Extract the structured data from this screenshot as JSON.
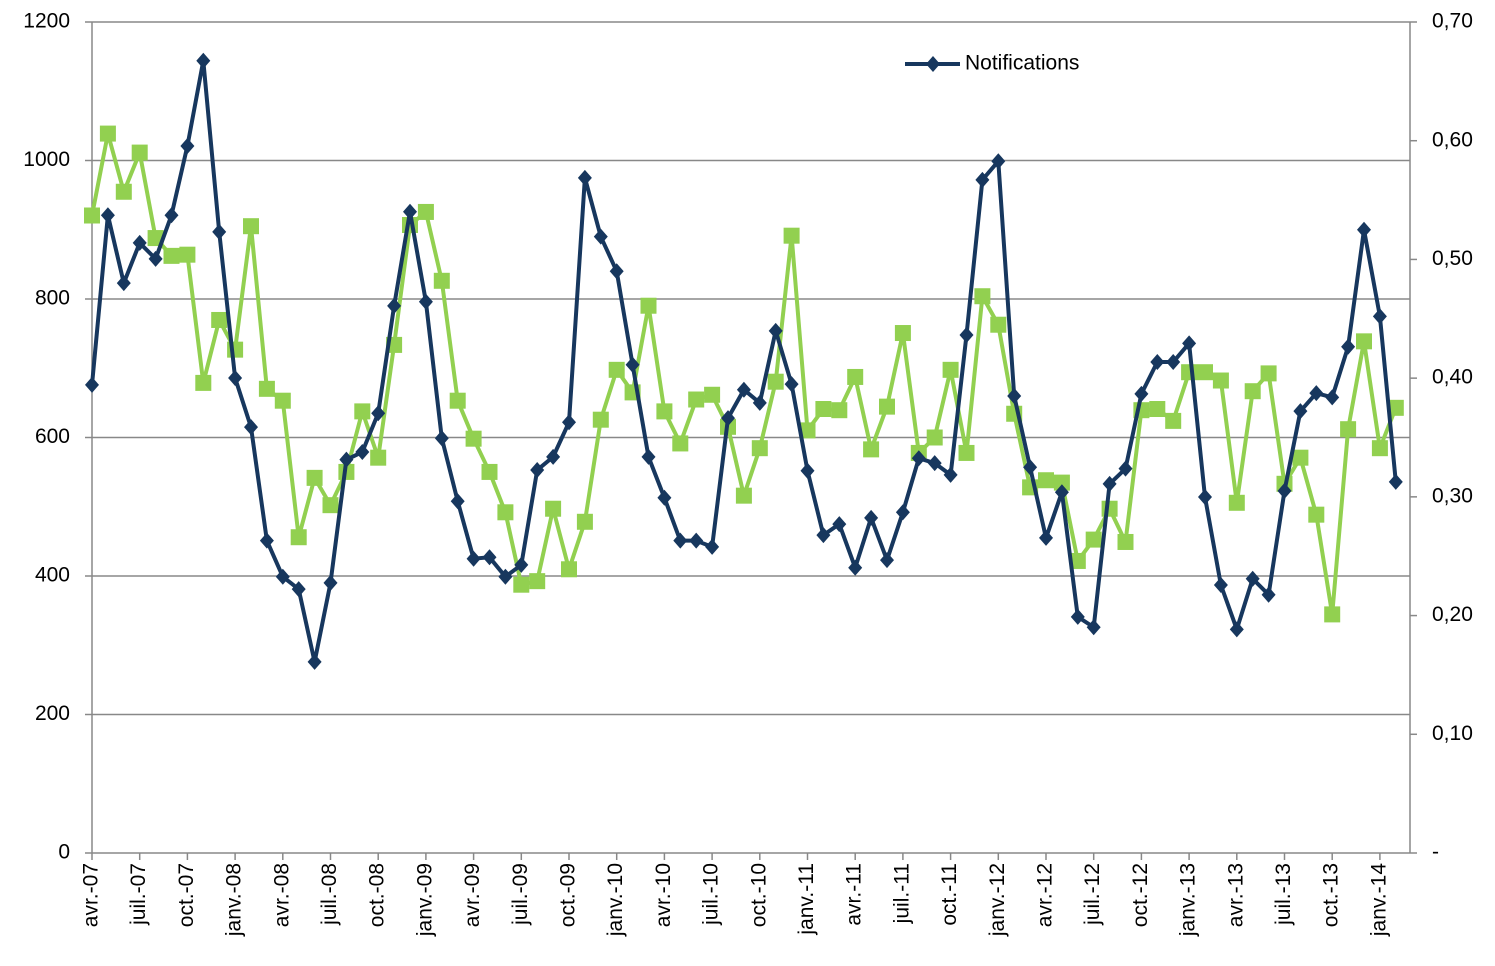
{
  "chart_data": {
    "type": "line",
    "categories": [
      "avr.-07",
      null,
      null,
      "juil.-07",
      null,
      null,
      "oct.-07",
      null,
      null,
      "janv.-08",
      null,
      null,
      "avr.-08",
      null,
      null,
      "juil.-08",
      null,
      null,
      "oct.-08",
      null,
      null,
      "janv.-09",
      null,
      null,
      "avr.-09",
      null,
      null,
      "juil.-09",
      null,
      null,
      "oct.-09",
      null,
      null,
      "janv.-10",
      null,
      null,
      "avr.-10",
      null,
      null,
      "juil.-10",
      null,
      null,
      "oct.-10",
      null,
      null,
      "janv.-11",
      null,
      null,
      "avr.-11",
      null,
      null,
      "juil.-11",
      null,
      null,
      "oct.-11",
      null,
      null,
      "janv.-12",
      null,
      null,
      "avr.-12",
      null,
      null,
      "juil.-12",
      null,
      null,
      "oct.-12",
      null,
      null,
      "janv.-13",
      null,
      null,
      "avr.-13",
      null,
      null,
      "juil.-13",
      null,
      null,
      "oct.-13",
      null,
      null,
      "janv.-14",
      null
    ],
    "series": [
      {
        "name": "Notifications",
        "color": "#17375e",
        "marker": "diamond",
        "values": [
          676,
          921,
          823,
          881,
          858,
          921,
          1021,
          1144,
          897,
          686,
          615,
          451,
          399,
          381,
          276,
          390,
          568,
          579,
          635,
          790,
          926,
          796,
          599,
          508,
          425,
          427,
          399,
          416,
          553,
          572,
          622,
          975,
          890,
          840,
          705,
          572,
          513,
          451,
          451,
          442,
          628,
          669,
          650,
          754,
          677,
          552,
          459,
          475,
          412,
          484,
          423,
          492,
          570,
          563,
          546,
          748,
          972,
          999,
          660,
          557,
          455,
          521,
          341,
          326,
          533,
          555,
          663,
          709,
          709,
          736,
          514,
          387,
          323,
          396,
          373,
          523,
          638,
          664,
          658,
          731,
          900,
          775,
          536
        ]
      },
      {
        "color": "#92d050",
        "marker": "square",
        "axis": "y2",
        "values": [
          0.537,
          0.606,
          0.557,
          0.59,
          0.518,
          0.503,
          0.504,
          0.396,
          0.449,
          0.424,
          0.528,
          0.391,
          0.381,
          0.266,
          0.316,
          0.293,
          0.321,
          0.372,
          0.333,
          0.428,
          0.529,
          0.54,
          0.482,
          0.381,
          0.349,
          0.321,
          0.287,
          0.226,
          0.229,
          0.29,
          0.239,
          0.279,
          0.365,
          0.407,
          0.388,
          0.461,
          0.372,
          0.345,
          0.382,
          0.386,
          0.359,
          0.301,
          0.341,
          0.397,
          0.52,
          0.356,
          0.374,
          0.373,
          0.401,
          0.34,
          0.376,
          0.438,
          0.337,
          0.35,
          0.407,
          0.337,
          0.469,
          0.445,
          0.37,
          0.308,
          0.314,
          0.312,
          0.246,
          0.264,
          0.29,
          0.262,
          0.373,
          0.374,
          0.364,
          0.405,
          0.405,
          0.398,
          0.295,
          0.389,
          0.404,
          0.311,
          0.333,
          0.285,
          0.201,
          0.357,
          0.431,
          0.341,
          0.375
        ]
      }
    ],
    "ylim": [
      0,
      1200
    ],
    "yticks": [
      0,
      200,
      400,
      600,
      800,
      1000,
      1200
    ],
    "y2lim": [
      0,
      0.7
    ],
    "y2ticks": [
      {
        "value": 0,
        "label": "-"
      },
      {
        "value": 0.1,
        "label": "0,10"
      },
      {
        "value": 0.2,
        "label": "0,20"
      },
      {
        "value": 0.3,
        "label": "0,30"
      },
      {
        "value": 0.4,
        "label": "0,40"
      },
      {
        "value": 0.5,
        "label": "0,50"
      },
      {
        "value": 0.6,
        "label": "0,60"
      },
      {
        "value": 0.7,
        "label": "0,70"
      }
    ],
    "grid": true,
    "legend": "top-right"
  }
}
